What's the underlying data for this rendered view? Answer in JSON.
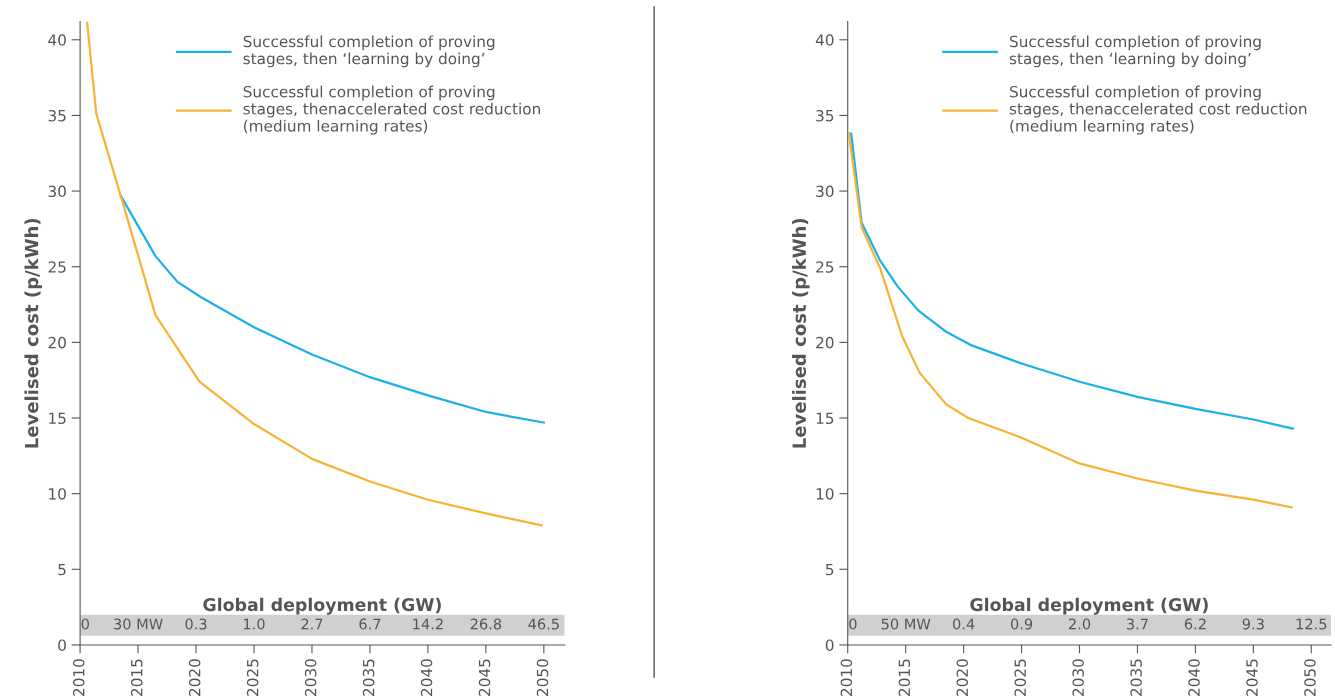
{
  "chart_data": [
    {
      "type": "line",
      "ylabel": "Levelised cost (p/kWh)",
      "xlim": [
        2010,
        2051.8
      ],
      "ylim": [
        0,
        41.2
      ],
      "xticks": [
        2010,
        2015,
        2020,
        2025,
        2030,
        2035,
        2040,
        2045,
        2050
      ],
      "yticks": [
        0,
        5,
        10,
        15,
        20,
        25,
        30,
        35,
        40
      ],
      "grid": false,
      "legend": "top right",
      "series": [
        {
          "name": "Successful completion of proving\nstages, then ‘learning by doing’",
          "color": "#1ab0e8",
          "x": [
            2013.5,
            2016.5,
            2018.4,
            2020.4,
            2025,
            2030,
            2035,
            2040,
            2045,
            2050
          ],
          "values": [
            29.7,
            25.7,
            24.0,
            23.0,
            21.0,
            19.2,
            17.7,
            16.5,
            15.4,
            14.7
          ]
        },
        {
          "name": "Successful completion of proving\nstages, thenaccelerated cost reduction\n(medium learning rates)",
          "color": "#f9b233",
          "x": [
            2010.6,
            2011.4,
            2013.5,
            2016.5,
            2020.3,
            2025,
            2030,
            2035,
            2040,
            2045,
            2049.8
          ],
          "values": [
            41.2,
            35.1,
            29.7,
            21.8,
            17.4,
            14.6,
            12.3,
            10.8,
            9.6,
            8.7,
            7.9
          ]
        }
      ],
      "bands": [
        {
          "axis": "y",
          "from": 0.6,
          "to": 2.0,
          "color": "#d0d0d0"
        }
      ],
      "annotations": [
        "Global deployment (GW)",
        "0",
        "30 MW",
        "0.3",
        "1.0",
        "2.7",
        "6.7",
        "14.2",
        "26.8",
        "46.5"
      ]
    },
    {
      "type": "line",
      "ylabel": "Levelised cost (p/kWh)",
      "xlim": [
        2010,
        2051.7
      ],
      "ylim": [
        0,
        41.2
      ],
      "xticks": [
        2010,
        2015,
        2020,
        2025,
        2030,
        2035,
        2040,
        2045,
        2050
      ],
      "yticks": [
        0,
        5,
        10,
        15,
        20,
        25,
        30,
        35,
        40
      ],
      "grid": false,
      "legend": "top right",
      "series": [
        {
          "name": "Successful completion of proving\nstages, then ‘learning by doing’",
          "color": "#1ab0e8",
          "x": [
            2010.1,
            2010.3,
            2011.2,
            2012.8,
            2014.3,
            2016.1,
            2018.5,
            2020.7,
            2025,
            2030,
            2035,
            2040,
            2045,
            2048.4
          ],
          "values": [
            33.8,
            33.8,
            27.9,
            25.4,
            23.7,
            22.1,
            20.7,
            19.8,
            18.6,
            17.4,
            16.4,
            15.6,
            14.9,
            14.3
          ]
        },
        {
          "name": "Successful completion of proving\nstages, thenaccelerated cost reduction\n(medium learning rates)",
          "color": "#f9b233",
          "x": [
            2010.1,
            2011.2,
            2012.8,
            2014.7,
            2016.2,
            2018.5,
            2020.4,
            2025,
            2030,
            2035,
            2040,
            2045,
            2048.3
          ],
          "values": [
            33.8,
            27.6,
            24.9,
            20.4,
            18.0,
            15.9,
            15.0,
            13.7,
            12.0,
            11.0,
            10.2,
            9.6,
            9.1
          ]
        }
      ],
      "bands": [
        {
          "axis": "y",
          "from": 0.6,
          "to": 2.0,
          "color": "#d0d0d0"
        }
      ],
      "annotations": [
        "Global deployment (GW)",
        "0",
        "50 MW",
        "0.4",
        "0.9",
        "2.0",
        "3.7",
        "6.2",
        "9.3",
        "12.5"
      ]
    }
  ]
}
